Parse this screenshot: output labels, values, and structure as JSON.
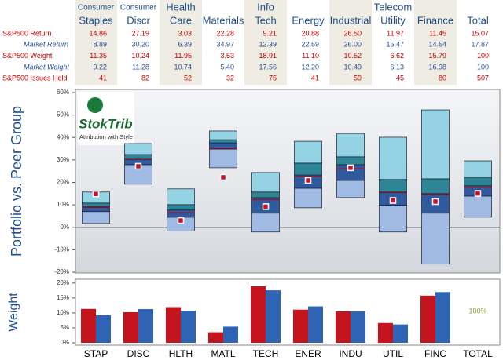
{
  "table": {
    "columns": [
      [
        "Consumer",
        "Staples"
      ],
      [
        "Consumer",
        "Discr"
      ],
      [
        "Health",
        "Care"
      ],
      [
        "Materials"
      ],
      [
        "Info",
        "Tech"
      ],
      [
        "Energy"
      ],
      [
        "Industrial"
      ],
      [
        "Telecom",
        "Utility"
      ],
      [
        "Finance"
      ],
      [
        "Total"
      ]
    ],
    "rows": [
      {
        "label": "S&P500 Return",
        "cells": [
          "14.86",
          "27.19",
          "3.03",
          "22.28",
          "9.21",
          "20.88",
          "26.50",
          "11.97",
          "11.45",
          "15.07"
        ]
      },
      {
        "label": "Market Return",
        "cells": [
          "8.89",
          "30.20",
          "6.39",
          "34.97",
          "12.39",
          "22.59",
          "26.00",
          "15.47",
          "14.54",
          "17.87"
        ]
      },
      {
        "label": "S&P500 Weight",
        "cells": [
          "11.35",
          "10.24",
          "11.95",
          "3.53",
          "18.91",
          "11.10",
          "10.52",
          "6.62",
          "15.79",
          "100"
        ]
      },
      {
        "label": "Market Weight",
        "cells": [
          "9.22",
          "11.28",
          "10.74",
          "5.40",
          "17.56",
          "12.20",
          "10.49",
          "6.13",
          "16.98",
          "100"
        ]
      },
      {
        "label": "S&P500 Issues Held",
        "cells": [
          "41",
          "82",
          "52",
          "32",
          "75",
          "41",
          "59",
          "45",
          "80",
          "507"
        ]
      }
    ]
  },
  "logo": {
    "name": "StokTrib",
    "tagline": "Attribution with Style"
  },
  "chart_data": [
    {
      "type": "box",
      "ylabel": "Portfolio vs. Peer Group",
      "ylim": [
        -20,
        60
      ],
      "yticks": [
        {
          "value": -20,
          "label": "-20%"
        },
        {
          "value": -10,
          "label": "-10%"
        },
        {
          "value": 0,
          "label": "0%"
        },
        {
          "value": 10,
          "label": "10%"
        },
        {
          "value": 20,
          "label": "20%"
        },
        {
          "value": 30,
          "label": "30%"
        },
        {
          "value": 40,
          "label": "40%"
        },
        {
          "value": 50,
          "label": "50%"
        },
        {
          "value": 60,
          "label": "60%"
        }
      ],
      "low": [
        1.7,
        19.2,
        -1.7,
        26.5,
        -2.1,
        8.7,
        13.2,
        -2.1,
        -16.4,
        4.5
      ],
      "q1": [
        7.0,
        27.9,
        4.5,
        34.8,
        6.3,
        17.4,
        20.9,
        9.8,
        6.3,
        13.9
      ],
      "median": [
        9.4,
        30.3,
        7.7,
        37.6,
        13.2,
        23.3,
        27.9,
        15.7,
        15.0,
        18.5
      ],
      "q3": [
        10.8,
        32.4,
        10.1,
        39.0,
        15.7,
        28.6,
        31.4,
        21.3,
        21.6,
        22.3
      ],
      "high": [
        15.7,
        37.3,
        17.1,
        42.9,
        24.4,
        38.3,
        41.8,
        40.1,
        52.3,
        29.6
      ],
      "markers": [
        14.86,
        27.19,
        3.03,
        22.28,
        9.21,
        20.88,
        26.5,
        11.97,
        11.45,
        15.07
      ],
      "lines": [
        8.89,
        30.2,
        6.39,
        34.97,
        12.39,
        22.59,
        26.0,
        15.47,
        14.54,
        17.87
      ],
      "colors": {
        "low": "#9fbbe3",
        "q1": "#2f5a9e",
        "median": "#2e8596",
        "q3": "#93d3e3",
        "marker": "#c8102e",
        "line": "#8b1020"
      }
    },
    {
      "type": "bar",
      "ylabel": "Weight",
      "categories": [
        "STAP",
        "DISC",
        "HLTH",
        "MATL",
        "TECH",
        "ENER",
        "INDU",
        "UTIL",
        "FINC",
        "TOTAL"
      ],
      "series": [
        {
          "color": "#c4141e",
          "values": [
            11.35,
            10.24,
            11.95,
            3.53,
            18.91,
            11.1,
            10.52,
            6.62,
            15.79,
            null
          ]
        },
        {
          "color": "#2f64b5",
          "values": [
            9.22,
            11.28,
            10.74,
            5.4,
            17.56,
            12.2,
            10.49,
            6.13,
            16.98,
            null
          ]
        }
      ],
      "ylim": [
        0,
        21
      ],
      "yticks": [
        {
          "value": 0,
          "label": "0%"
        },
        {
          "value": 5,
          "label": "5%"
        },
        {
          "value": 10,
          "label": "10%"
        },
        {
          "value": 15,
          "label": "15%"
        },
        {
          "value": 20,
          "label": "20%"
        }
      ],
      "annotation": "100%"
    }
  ]
}
